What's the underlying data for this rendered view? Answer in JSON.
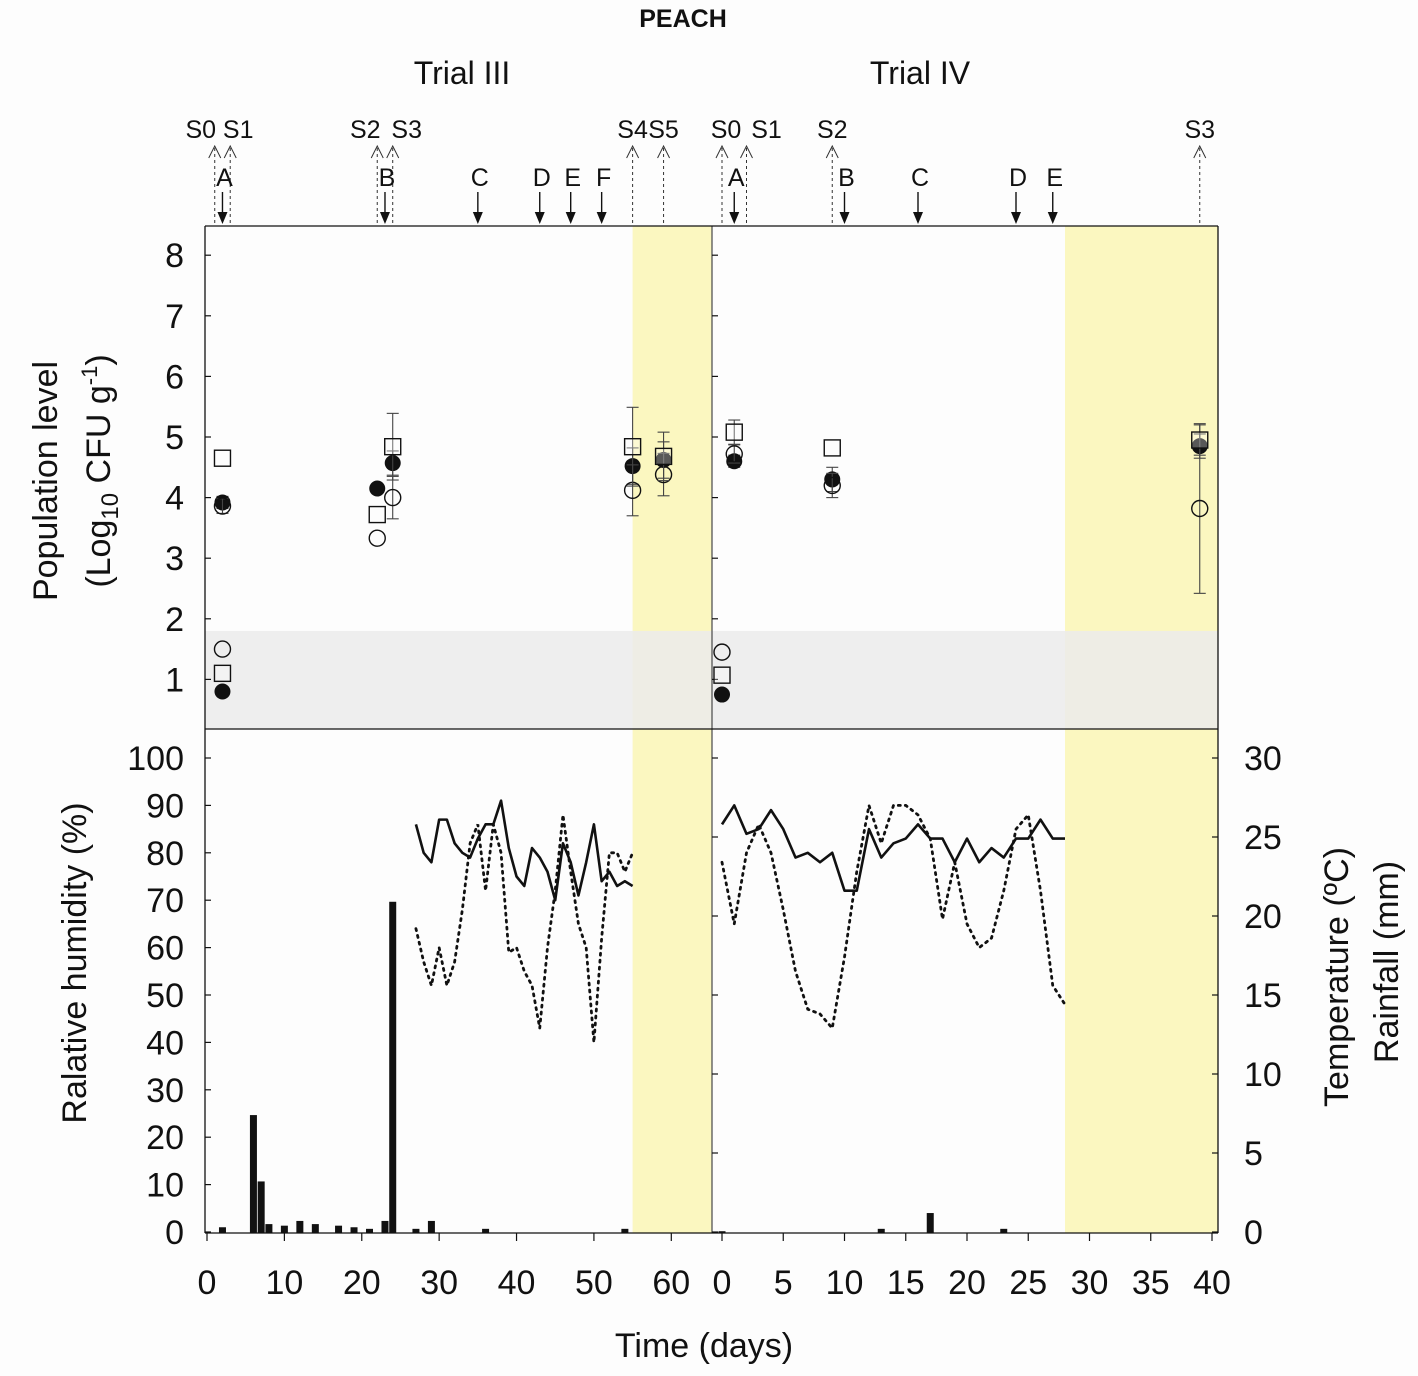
{
  "chart_data": {
    "type": "scatter+line+bar",
    "title": "PEACH",
    "xlabel": "Time (days)",
    "panels": [
      {
        "name": "Trial III",
        "xlim": [
          0,
          65
        ],
        "xticks": [
          0,
          10,
          20,
          30,
          40,
          50,
          60
        ],
        "xtick_labels": [
          "0",
          "10",
          "20",
          "30",
          "40",
          "50",
          "60"
        ],
        "storage_period_days": [
          55,
          65
        ],
        "sampling_events": [
          {
            "label": "S0",
            "day": 1
          },
          {
            "label": "S1",
            "day": 3
          },
          {
            "label": "S2",
            "day": 22
          },
          {
            "label": "S3",
            "day": 24
          },
          {
            "label": "S4",
            "day": 55
          },
          {
            "label": "S5",
            "day": 59
          }
        ],
        "treatments": [
          {
            "label": "A",
            "day": 2
          },
          {
            "label": "B",
            "day": 23
          },
          {
            "label": "C",
            "day": 35
          },
          {
            "label": "D",
            "day": 43
          },
          {
            "label": "E",
            "day": 47
          },
          {
            "label": "F",
            "day": 51
          }
        ],
        "population": [
          {
            "name": "filled circle",
            "marker": "filled-circle",
            "points": [
              [
                2,
                0.8
              ],
              [
                2,
                3.92
              ],
              [
                22,
                4.15
              ],
              [
                24,
                4.57
              ],
              [
                55,
                4.52
              ],
              [
                59,
                4.62
              ]
            ],
            "errors": [
              0,
              0.1,
              0,
              0.2,
              0.3,
              0.3
            ]
          },
          {
            "name": "open circle",
            "marker": "open-circle",
            "points": [
              [
                2,
                1.5
              ],
              [
                2,
                3.86
              ],
              [
                22,
                3.33
              ],
              [
                24,
                4.0
              ],
              [
                55,
                4.12
              ],
              [
                59,
                4.38
              ]
            ],
            "errors": [
              0,
              0.12,
              0,
              0.35,
              0.42,
              0.35
            ]
          },
          {
            "name": "open square",
            "marker": "open-square",
            "points": [
              [
                2,
                1.1
              ],
              [
                2,
                4.65
              ],
              [
                22,
                3.72
              ],
              [
                24,
                4.84
              ],
              [
                55,
                4.84
              ],
              [
                59,
                4.68
              ]
            ],
            "errors": [
              0,
              0,
              0,
              0.55,
              0.65,
              0.4
            ]
          }
        ],
        "humidity_solid": {
          "x": [
            27,
            28,
            29,
            30,
            31,
            32,
            33,
            34,
            35,
            36,
            37,
            38,
            39,
            40,
            41,
            42,
            43,
            44,
            45,
            46,
            47,
            48,
            49,
            50,
            51,
            52,
            53,
            54,
            55
          ],
          "values": [
            86,
            80,
            78,
            87,
            87,
            82,
            80,
            79,
            83,
            86,
            86,
            91,
            81,
            75,
            73,
            81,
            79,
            76,
            70,
            82,
            78,
            71,
            78,
            86,
            74,
            76,
            73,
            74,
            73
          ]
        },
        "humidity_dotted": {
          "x": [
            27,
            28,
            29,
            30,
            31,
            32,
            33,
            34,
            35,
            36,
            37,
            38,
            39,
            40,
            41,
            42,
            43,
            44,
            45,
            46,
            47,
            48,
            49,
            50,
            51,
            52,
            53,
            54,
            55
          ],
          "values": [
            64,
            57,
            52,
            60,
            52,
            57,
            68,
            82,
            86,
            72,
            86,
            80,
            59,
            60,
            55,
            52,
            43,
            60,
            72,
            88,
            76,
            65,
            60,
            40,
            62,
            80,
            80,
            76,
            80
          ]
        },
        "rainfall_mm": {
          "x": [
            2,
            6,
            7,
            8,
            10,
            12,
            14,
            17,
            19,
            21,
            23,
            24,
            27,
            29,
            36,
            54
          ],
          "values": [
            0.3,
            7.4,
            3.2,
            0.5,
            0.4,
            0.7,
            0.5,
            0.4,
            0.3,
            0.2,
            0.7,
            20.9,
            0.2,
            0.7,
            0.2,
            0.2
          ]
        }
      },
      {
        "name": "Trial IV",
        "xlim": [
          0,
          40
        ],
        "xticks": [
          0,
          5,
          10,
          15,
          20,
          25,
          30,
          35,
          40
        ],
        "xtick_labels": [
          "0",
          "5",
          "10",
          "15",
          "20",
          "25",
          "30",
          "35",
          "40"
        ],
        "storage_period_days": [
          28,
          40
        ],
        "sampling_events": [
          {
            "label": "S0",
            "day": 0
          },
          {
            "label": "S1",
            "day": 2
          },
          {
            "label": "S2",
            "day": 9
          },
          {
            "label": "S3",
            "day": 39
          }
        ],
        "treatments": [
          {
            "label": "A",
            "day": 1
          },
          {
            "label": "B",
            "day": 10
          },
          {
            "label": "C",
            "day": 16
          },
          {
            "label": "D",
            "day": 24
          },
          {
            "label": "E",
            "day": 27
          }
        ],
        "population": [
          {
            "name": "filled circle",
            "marker": "filled-circle",
            "points": [
              [
                0,
                0.75
              ],
              [
                1,
                4.6
              ],
              [
                9,
                4.3
              ],
              [
                39,
                4.85
              ]
            ],
            "errors": [
              0,
              0.1,
              0.2,
              0.2
            ]
          },
          {
            "name": "open circle",
            "marker": "open-circle",
            "points": [
              [
                0,
                1.45
              ],
              [
                1,
                4.72
              ],
              [
                9,
                4.2
              ],
              [
                39,
                3.82
              ]
            ],
            "errors": [
              0,
              0.15,
              0.2,
              1.4
            ]
          },
          {
            "name": "open square",
            "marker": "open-square",
            "points": [
              [
                0,
                1.07
              ],
              [
                1,
                5.08
              ],
              [
                9,
                4.82
              ],
              [
                39,
                4.95
              ]
            ],
            "errors": [
              0,
              0.2,
              0,
              0.25
            ]
          }
        ],
        "humidity_solid": {
          "x": [
            0,
            1,
            2,
            3,
            4,
            5,
            6,
            7,
            8,
            9,
            10,
            11,
            12,
            13,
            14,
            15,
            16,
            17,
            18,
            19,
            20,
            21,
            22,
            23,
            24,
            25,
            26,
            27,
            28
          ],
          "values": [
            86,
            90,
            84,
            85,
            89,
            85,
            79,
            80,
            78,
            80,
            72,
            72,
            85,
            79,
            82,
            83,
            86,
            83,
            83,
            78,
            83,
            78,
            81,
            79,
            83,
            83,
            87,
            83,
            83
          ]
        },
        "humidity_dotted": {
          "x": [
            0,
            1,
            2,
            3,
            4,
            5,
            6,
            7,
            8,
            9,
            10,
            11,
            12,
            13,
            14,
            15,
            16,
            17,
            18,
            19,
            20,
            21,
            22,
            23,
            24,
            25,
            26,
            27,
            28
          ],
          "values": [
            78,
            65,
            80,
            86,
            80,
            68,
            55,
            47,
            46,
            43,
            58,
            76,
            90,
            82,
            90,
            90,
            88,
            83,
            66,
            78,
            65,
            60,
            62,
            72,
            85,
            88,
            72,
            52,
            48
          ]
        },
        "rainfall_mm": {
          "x": [
            0,
            13,
            17,
            23
          ],
          "values": [
            0.05,
            0.2,
            1.2,
            0.2
          ]
        }
      }
    ],
    "top_axis": {
      "ylabel_line1": "Population level",
      "ylabel_line2": "(Log10 CFU g-1)",
      "ylim": [
        0,
        8.5
      ],
      "yticks": [
        "1",
        "2",
        "3",
        "4",
        "5",
        "6",
        "7",
        "8"
      ],
      "detection_limit_band": [
        0,
        1.8
      ]
    },
    "bottom_axis": {
      "ylabel_left": "Ralative humidity (%)",
      "ylim_left": [
        0,
        100
      ],
      "yticks_left": [
        "0",
        "10",
        "20",
        "30",
        "40",
        "50",
        "60",
        "70",
        "80",
        "90",
        "100"
      ],
      "ylabel_right_1": "Temperature (ºC)",
      "ylabel_right_2": "Rainfall (mm)",
      "ylim_right": [
        0,
        30
      ],
      "yticks_right": [
        "0",
        "5",
        "10",
        "15",
        "20",
        "25",
        "30"
      ]
    },
    "colors": {
      "storage": "#fbf7c0",
      "detection_band": "#ebebeb",
      "ink": "#111111"
    }
  }
}
